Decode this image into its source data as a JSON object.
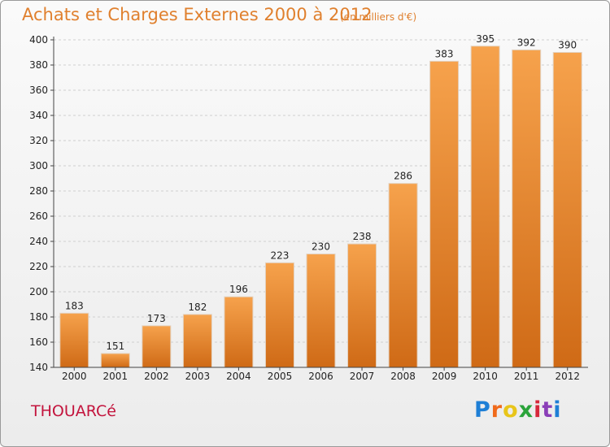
{
  "chart_data": {
    "type": "bar",
    "title": "Achats et Charges Externes 2000 à 2012",
    "subtitle": "(en milliers d'€)",
    "categories": [
      "2000",
      "2001",
      "2002",
      "2003",
      "2004",
      "2005",
      "2006",
      "2007",
      "2008",
      "2009",
      "2010",
      "2011",
      "2012"
    ],
    "values": [
      183,
      151,
      173,
      182,
      196,
      223,
      230,
      238,
      286,
      383,
      395,
      392,
      390
    ],
    "ylim": [
      140,
      400
    ],
    "yticks": [
      140,
      160,
      180,
      200,
      220,
      240,
      260,
      280,
      300,
      320,
      340,
      360,
      380,
      400
    ],
    "grid": true,
    "bar_color": "#f08a2c"
  },
  "commune": "THOUARCé",
  "logo": {
    "text": "Proxiti"
  }
}
